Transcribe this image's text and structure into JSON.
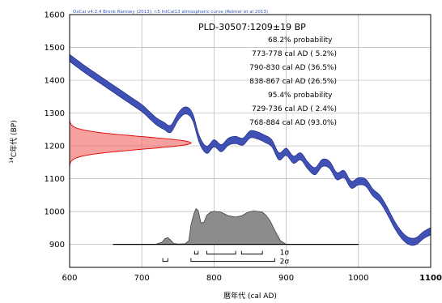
{
  "chart_data": {
    "type": "area",
    "credit": "OxCal v4.2.4 Bronk Ramsey (2013); r:5 IntCal13 atmospheric curve (Reimer et al 2013)",
    "title": "PLD-30507:1209±19 BP",
    "xlabel": "暦年代 (cal AD)",
    "ylabel_sup": "14",
    "ylabel": "C年代 (BP)",
    "xlim": [
      600,
      1100
    ],
    "ylim": [
      830,
      1600
    ],
    "x_ticks": [
      "600",
      "700",
      "800",
      "900",
      "1000",
      "1100"
    ],
    "y_ticks": [
      "900",
      "1000",
      "1100",
      "1200",
      "1300",
      "1400",
      "1500",
      "1600"
    ],
    "grid": true,
    "probability_text": [
      "68.2% probability",
      "773-778 cal AD ( 5.2%)",
      "790-830 cal AD (36.5%)",
      "838-867 cal AD (26.5%)",
      "95.4% probability",
      "729-736 cal AD ( 2.4%)",
      "768-884 cal AD (93.0%)"
    ],
    "sigma_labels": [
      "1σ",
      "2σ"
    ],
    "calibration_curve": {
      "name": "IntCal13",
      "color": "#3f51b5",
      "x": [
        600,
        620,
        640,
        660,
        680,
        700,
        710,
        720,
        730,
        740,
        750,
        760,
        770,
        780,
        790,
        800,
        810,
        820,
        830,
        840,
        850,
        860,
        870,
        880,
        890,
        900,
        910,
        920,
        930,
        940,
        950,
        960,
        970,
        980,
        990,
        1000,
        1010,
        1020,
        1030,
        1040,
        1050,
        1060,
        1070,
        1080,
        1090,
        1100
      ],
      "y": [
        1468,
        1435,
        1405,
        1375,
        1345,
        1315,
        1295,
        1275,
        1262,
        1252,
        1288,
        1308,
        1290,
        1218,
        1188,
        1208,
        1193,
        1213,
        1218,
        1213,
        1235,
        1232,
        1222,
        1208,
        1168,
        1182,
        1158,
        1168,
        1140,
        1123,
        1148,
        1142,
        1108,
        1114,
        1082,
        1092,
        1088,
        1058,
        1038,
        1002,
        960,
        928,
        910,
        910,
        928,
        940
      ]
    },
    "radiocarbon_date": {
      "mean": 1209,
      "sigma": 19,
      "color": "#f26060"
    },
    "calibrated_distribution": {
      "color": "#808080",
      "x": [
        660,
        700,
        720,
        728,
        732,
        736,
        740,
        744,
        750,
        760,
        765,
        768,
        772,
        775,
        778,
        782,
        786,
        790,
        795,
        800,
        810,
        820,
        830,
        838,
        845,
        850,
        855,
        860,
        867,
        872,
        878,
        884,
        888,
        892,
        900,
        1000
      ],
      "density": [
        0,
        0,
        0.01,
        0.06,
        0.16,
        0.19,
        0.12,
        0.03,
        0.01,
        0.02,
        0.1,
        0.55,
        0.85,
        1.0,
        0.95,
        0.6,
        0.62,
        0.82,
        0.9,
        0.93,
        0.9,
        0.8,
        0.77,
        0.8,
        0.88,
        0.92,
        0.94,
        0.93,
        0.9,
        0.82,
        0.65,
        0.4,
        0.25,
        0.1,
        0,
        0
      ]
    },
    "range_bars": {
      "sigma1": [
        [
          773,
          778
        ],
        [
          790,
          830
        ],
        [
          838,
          867
        ]
      ],
      "sigma2": [
        [
          729,
          736
        ],
        [
          768,
          884
        ]
      ]
    }
  }
}
